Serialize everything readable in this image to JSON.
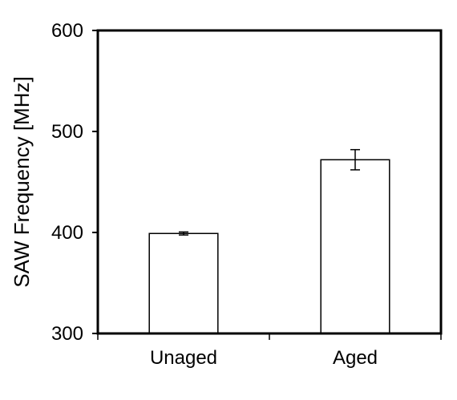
{
  "chart_data": {
    "type": "bar",
    "title": "",
    "xlabel": "",
    "ylabel": "SAW Frequency [MHz]",
    "ylim": [
      300,
      600
    ],
    "yticks": [
      300,
      400,
      500,
      600
    ],
    "ytick_labels": [
      "300",
      "400",
      "500",
      "600"
    ],
    "categories": [
      "Unaged",
      "Aged"
    ],
    "values": [
      399,
      472
    ],
    "errors": [
      1.5,
      10
    ],
    "grid": false,
    "legend": "none",
    "colors": {
      "bar_fill": "#ffffff",
      "bar_stroke": "#000000",
      "axis": "#000000"
    }
  }
}
